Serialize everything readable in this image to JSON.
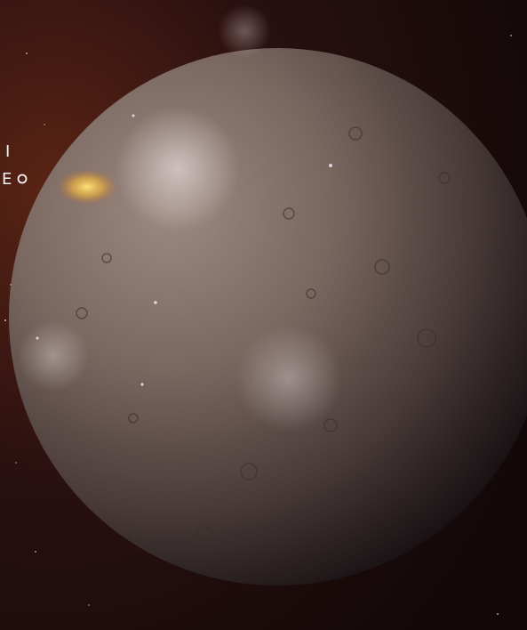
{
  "fragments": [
    "I",
    "E"
  ]
}
